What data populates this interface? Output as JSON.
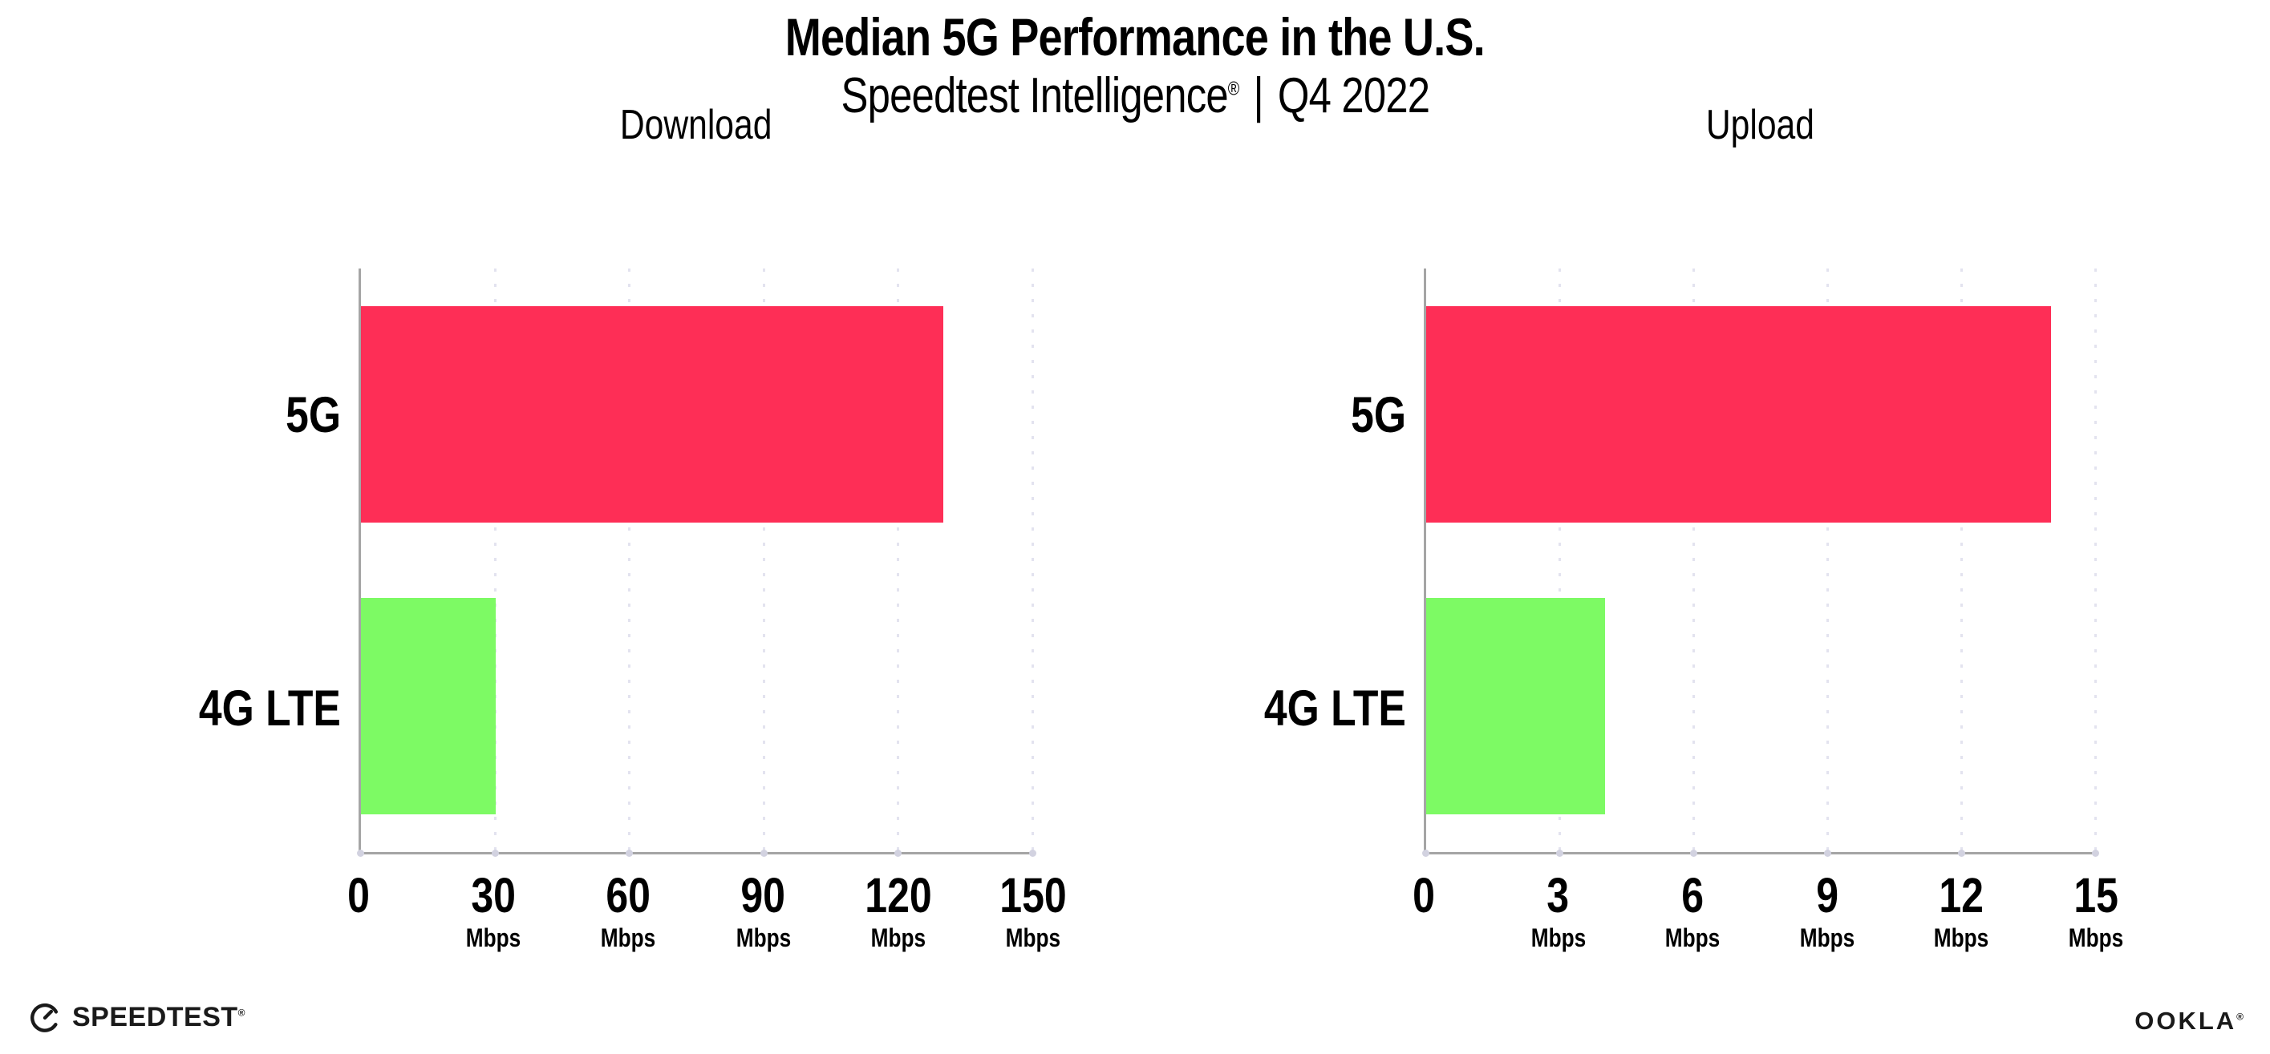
{
  "header": {
    "title": "Median 5G Performance in the U.S.",
    "subtitle_brand": "Speedtest Intelligence",
    "subtitle_reg": "®",
    "subtitle_separator": "|",
    "subtitle_period": "Q4 2022"
  },
  "chart_data": [
    {
      "type": "bar",
      "orientation": "horizontal",
      "title": "Download",
      "categories": [
        "5G",
        "4G LTE"
      ],
      "values": [
        130,
        30
      ],
      "unit": "Mbps",
      "xlim": [
        0,
        150
      ],
      "xticks": [
        0,
        30,
        60,
        90,
        120,
        150
      ],
      "tick_unit": "Mbps",
      "bar_colors": [
        "#FE2E56",
        "#7DFA64"
      ],
      "grid": "vertical-dotted",
      "legend": "none"
    },
    {
      "type": "bar",
      "orientation": "horizontal",
      "title": "Upload",
      "categories": [
        "5G",
        "4G LTE"
      ],
      "values": [
        14,
        4
      ],
      "unit": "Mbps",
      "xlim": [
        0,
        15
      ],
      "xticks": [
        0,
        3,
        6,
        9,
        12,
        15
      ],
      "tick_unit": "Mbps",
      "bar_colors": [
        "#FE2E56",
        "#7DFA64"
      ],
      "grid": "vertical-dotted",
      "legend": "none"
    }
  ],
  "colors": {
    "bar_5g": "#FE2E56",
    "bar_4g_lte": "#7DFA64",
    "gridline": "#E3E3EF",
    "axis": "#A5A5A5",
    "text": "#000000",
    "background": "#FFFFFF"
  },
  "footer": {
    "speedtest_label": "SPEEDTEST",
    "speedtest_mark": "®",
    "ookla_label": "OOKLA",
    "ookla_mark": "®"
  }
}
